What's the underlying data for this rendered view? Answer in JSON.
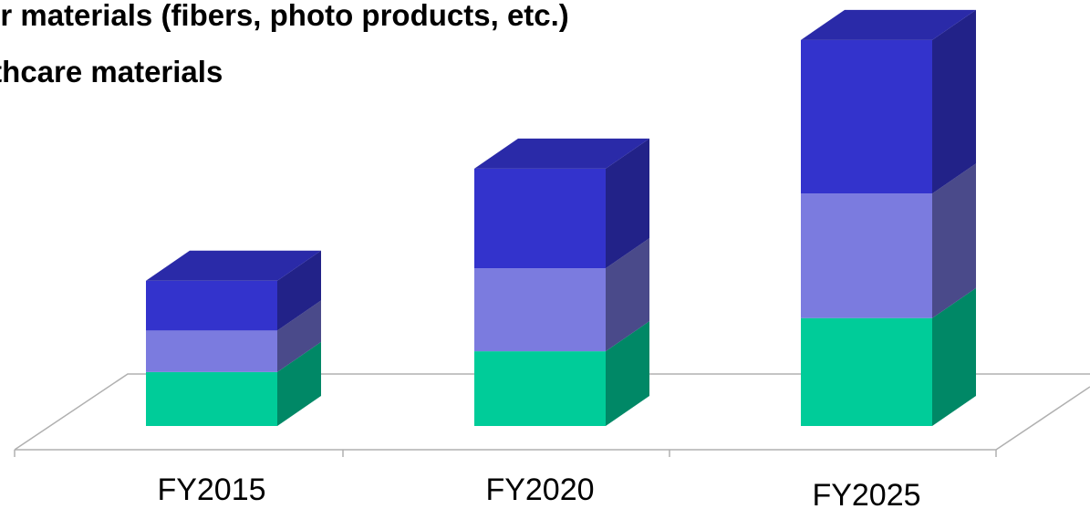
{
  "legend": {
    "line1": "er materials (fibers, photo products, etc.)",
    "line2": "lthcare materials"
  },
  "colors": {
    "green": "#00cc99",
    "green_side": "#008866",
    "lavender": "#7b7bdf",
    "lavender_side": "#4a4a8a",
    "blue": "#3333cc",
    "blue_side": "#222288",
    "blue_top": "#2a2aa8",
    "floor_line": "#b0b0b0"
  },
  "chart_data": {
    "type": "bar",
    "stacked": true,
    "three_d": true,
    "categories": [
      "FY2015",
      "FY2020",
      "FY2025"
    ],
    "series": [
      {
        "name": "",
        "color": "green",
        "values": [
          1.3,
          1.8,
          2.6
        ]
      },
      {
        "name": "",
        "color": "lavender",
        "values": [
          1.0,
          2.0,
          3.0
        ]
      },
      {
        "name": "",
        "color": "blue",
        "values": [
          1.2,
          2.4,
          3.7
        ]
      }
    ],
    "ylim": [
      0,
      9.5
    ],
    "grid": false,
    "xlabel": "",
    "ylabel": ""
  }
}
